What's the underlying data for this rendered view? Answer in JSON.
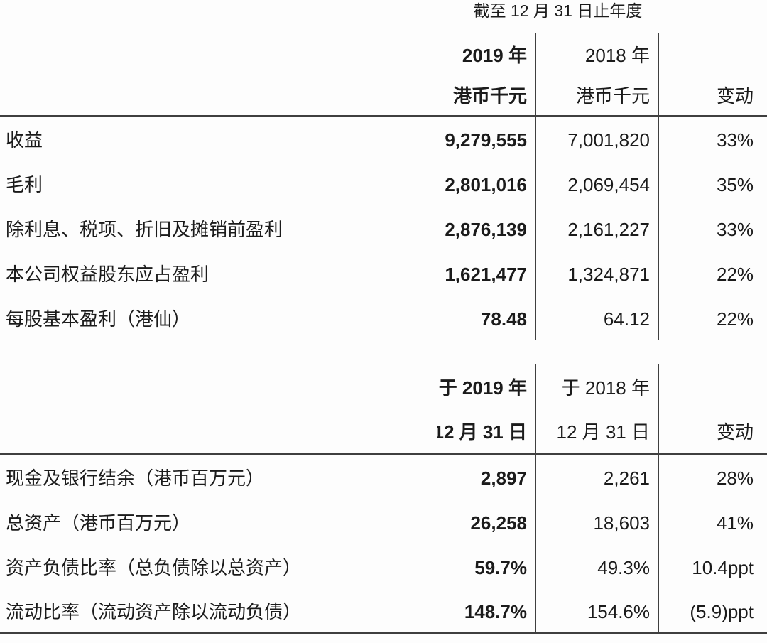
{
  "colors": {
    "text": "#1b1b1b",
    "rule": "#3f3f3f",
    "background": "#fdfdfd"
  },
  "table1": {
    "title": "截至 12 月 31 日止年度",
    "headers": {
      "y2019_line1": "2019 年",
      "y2019_line2": "港币千元",
      "y2018_line1": "2018 年",
      "y2018_line2": "港币千元",
      "change": "变动"
    },
    "rows": [
      {
        "label": "收益",
        "v2019": "9,279,555",
        "v2018": "7,001,820",
        "change": "33%"
      },
      {
        "label": "毛利",
        "v2019": "2,801,016",
        "v2018": "2,069,454",
        "change": "35%"
      },
      {
        "label": "除利息、税项、折旧及摊销前盈利",
        "v2019": "2,876,139",
        "v2018": "2,161,227",
        "change": "33%"
      },
      {
        "label": "本公司权益股东应占盈利",
        "v2019": "1,621,477",
        "v2018": "1,324,871",
        "change": "22%"
      },
      {
        "label": "每股基本盈利（港仙）",
        "v2019": "78.48",
        "v2018": "64.12",
        "change": "22%"
      }
    ]
  },
  "table2": {
    "headers": {
      "y2019_line1": "于 2019 年",
      "y2019_line2": "12 月 31 日",
      "y2018_line1": "于 2018 年",
      "y2018_line2": "12 月 31 日",
      "change": "变动"
    },
    "rows": [
      {
        "label": "现金及银行结余（港币百万元）",
        "v2019": "2,897",
        "v2018": "2,261",
        "change": "28%"
      },
      {
        "label": "总资产（港币百万元）",
        "v2019": "26,258",
        "v2018": "18,603",
        "change": "41%"
      },
      {
        "label": "资产负债比率（总负债除以总资产）",
        "v2019": "59.7%",
        "v2018": "49.3%",
        "change": "10.4ppt"
      },
      {
        "label": "流动比率（流动资产除以流动负债）",
        "v2019": "148.7%",
        "v2018": "154.6%",
        "change": "(5.9)ppt"
      }
    ]
  }
}
